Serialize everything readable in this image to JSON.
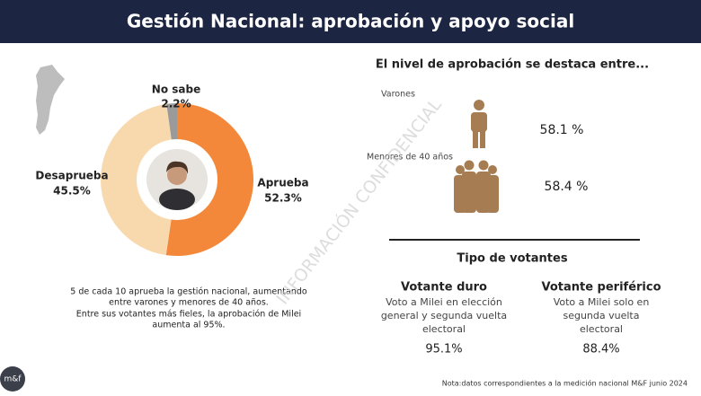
{
  "header": {
    "title": "Gestión Nacional: aprobación y apoyo social"
  },
  "chart_data": {
    "type": "pie",
    "donut": true,
    "categories": [
      "Aprueba",
      "Desaprueba",
      "No sabe"
    ],
    "values": [
      52.3,
      45.5,
      2.2
    ],
    "value_labels": [
      "52.3%",
      "45.5%",
      "2.2%"
    ],
    "colors": [
      "#f4883a",
      "#f8d9ad",
      "#9a9a9a"
    ]
  },
  "note": [
    "5 de cada 10 aprueba la gestión nacional, aumentando",
    "entre varones y menores de 40 años.",
    "Entre sus votantes más fieles, la aprobación de Milei",
    "aumenta al 95%."
  ],
  "highlight": {
    "title": "El nivel de aprobación se destaca entre...",
    "groups": [
      {
        "label": "Varones",
        "value": "58.1 %"
      },
      {
        "label": "Menores de 40 años",
        "value": "58.4 %"
      }
    ]
  },
  "voters": {
    "title": "Tipo de votantes",
    "types": [
      {
        "name": "Votante duro",
        "description": [
          "Voto a Milei en elección",
          "general y segunda vuelta",
          "electoral"
        ],
        "value": "95.1%"
      },
      {
        "name": "Votante periférico",
        "description": [
          "Voto a Milei solo en",
          "segunda vuelta",
          "electoral"
        ],
        "value": "88.4%"
      }
    ]
  },
  "watermark": "INFORMACIÓN CONFIDENCIAL",
  "logo": "m&f",
  "footnote": "Nota:datos correspondientes a la medición nacional M&F junio 2024"
}
